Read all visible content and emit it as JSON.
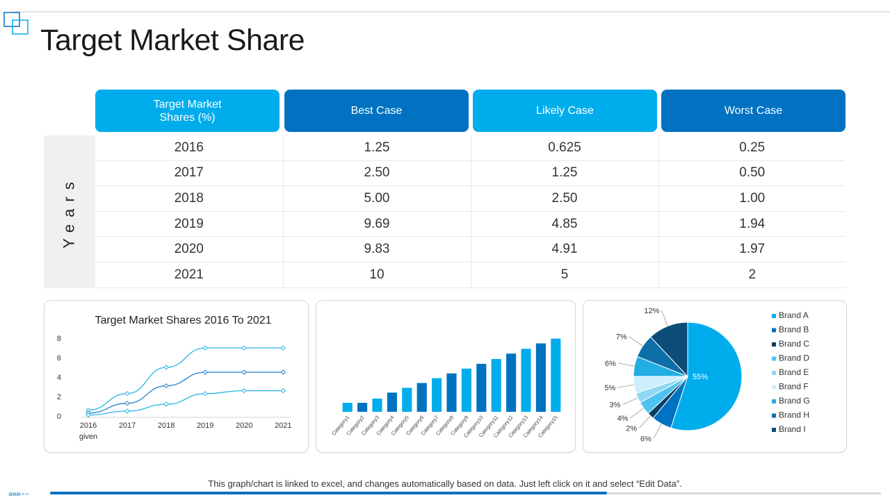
{
  "title": "Target Market Share",
  "table": {
    "headers": [
      "Target Market\nShares (%)",
      "Best Case",
      "Likely Case",
      "Worst Case"
    ],
    "side_label": "Years",
    "rows": [
      [
        "2016",
        "1.25",
        "0.625",
        "0.25"
      ],
      [
        "2017",
        "2.50",
        "1.25",
        "0.50"
      ],
      [
        "2018",
        "5.00",
        "2.50",
        "1.00"
      ],
      [
        "2019",
        "9.69",
        "4.85",
        "1.94"
      ],
      [
        "2020",
        "9.83",
        "4.91",
        "1.97"
      ],
      [
        "2021",
        "10",
        "5",
        "2"
      ]
    ]
  },
  "footer": {
    "note": "This graph/chart is linked to excel, and changes automatically based on data. Just left click on it and select “Edit Data”.",
    "nav_symbol": "»»» ◦ ◦",
    "progress": 0.67
  },
  "colors": {
    "accent_light": "#00adec",
    "accent_dark": "#0072c1"
  },
  "chart_data": [
    {
      "type": "line",
      "title": "Target Market Shares 2016 To 2021",
      "categories": [
        "2016",
        "2017",
        "2018",
        "2019",
        "2020",
        "2021"
      ],
      "x_sublabel": "given",
      "yticks": [
        0,
        2,
        4,
        6,
        8
      ],
      "ylim": [
        0,
        8
      ],
      "grid": false,
      "smooth": true,
      "series": [
        {
          "values": [
            0.6,
            2.3,
            5.0,
            7.0,
            7.0,
            7.0
          ],
          "color": "#29b6e8"
        },
        {
          "values": [
            0.3,
            1.3,
            3.1,
            4.5,
            4.5,
            4.5
          ],
          "color": "#1b7fcf"
        },
        {
          "values": [
            0.1,
            0.5,
            1.2,
            2.3,
            2.6,
            2.6
          ],
          "color": "#29b6e8"
        }
      ]
    },
    {
      "type": "bar",
      "categories": [
        "Category1",
        "Category2",
        "Category3",
        "Category4",
        "Category5",
        "Category6",
        "Category7",
        "Category8",
        "Category9",
        "Category10",
        "Category11",
        "Category12",
        "Category13",
        "Category14",
        "Category15"
      ],
      "values": [
        1.5,
        1.5,
        2.2,
        3.2,
        4.0,
        4.8,
        5.6,
        6.4,
        7.2,
        8.0,
        8.8,
        9.7,
        10.5,
        11.4,
        12.2
      ],
      "colors": [
        "#00adec",
        "#0072c1",
        "#00adec",
        "#0072c1",
        "#00adec",
        "#0072c1",
        "#00adec",
        "#0072c1",
        "#00adec",
        "#0072c1",
        "#00adec",
        "#0072c1",
        "#00adec",
        "#0072c1",
        "#00adec"
      ],
      "ylim": [
        0,
        12.5
      ],
      "grid": false
    },
    {
      "type": "pie",
      "labels": [
        "Brand A",
        "Brand B",
        "Brand C",
        "Brand D",
        "Brand E",
        "Brand F",
        "Brand G",
        "Brand H",
        "Brand I"
      ],
      "values": [
        55,
        6,
        2,
        4,
        3,
        5,
        6,
        7,
        12
      ],
      "value_labels": [
        "55%",
        "6%",
        "2%",
        "4%",
        "3%",
        "5%",
        "6%",
        "7%",
        "12%"
      ],
      "colors": [
        "#00adec",
        "#0072c1",
        "#0a3f66",
        "#4fc3f0",
        "#8fd8f5",
        "#cdeefb",
        "#22aee2",
        "#0d6fa8",
        "#0b4d78"
      ],
      "legend": "right"
    }
  ]
}
